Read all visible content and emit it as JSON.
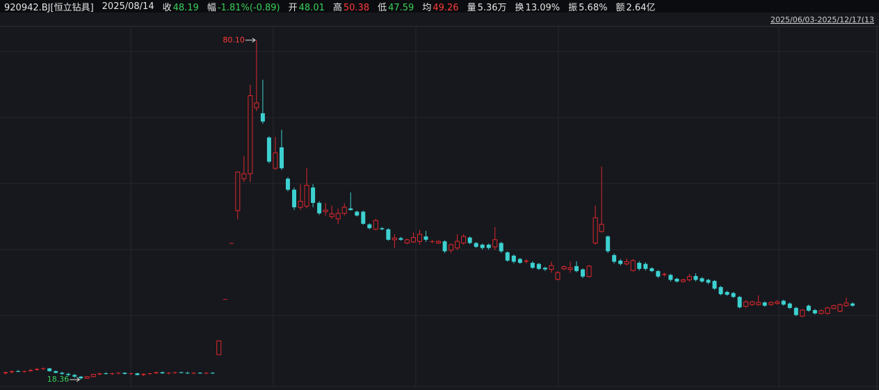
{
  "header": {
    "code": "920942.BJ[恒立钻具]",
    "date": "2025/08/14",
    "fields": [
      {
        "label": "收",
        "value": "48.19",
        "color": "#3ad15b"
      },
      {
        "label": "幅",
        "value": "-1.81%(-0.89)",
        "color": "#3ad15b"
      },
      {
        "label": "开",
        "value": "48.01",
        "color": "#3ad15b"
      },
      {
        "label": "高",
        "value": "50.38",
        "color": "#ff3b3b"
      },
      {
        "label": "低",
        "value": "47.59",
        "color": "#3ad15b"
      },
      {
        "label": "均",
        "value": "49.26",
        "color": "#ff3b3b"
      },
      {
        "label": "量",
        "value": "5.36万",
        "color": "#e6e6e6"
      },
      {
        "label": "换",
        "value": "13.09%",
        "color": "#e6e6e6"
      },
      {
        "label": "振",
        "value": "5.68%",
        "color": "#e6e6e6"
      },
      {
        "label": "额",
        "value": "2.64亿",
        "color": "#e6e6e6"
      }
    ]
  },
  "chart_data": {
    "type": "candlestick",
    "date_range": "2025/06/03-2025/12/17(13",
    "up_color": "#e0282e",
    "down_color": "#3dd0d0",
    "grid": true,
    "ylim": [
      17.1,
      82.6
    ],
    "yticks": [
      30,
      42,
      54,
      66,
      78
    ],
    "max_label": "80.10",
    "min_label": "18.36",
    "open": [
      19.5,
      19.7,
      19.9,
      19.8,
      19.9,
      20.1,
      20.3,
      20.4,
      19.9,
      19.6,
      19.4,
      19.2,
      18.9,
      18.6,
      18.9,
      19.3,
      19.5,
      19.4,
      19.5,
      19.6,
      19.4,
      19.5,
      19.2,
      19.4,
      19.5,
      19.7,
      19.5,
      19.6,
      19.7,
      19.6,
      19.5,
      19.6,
      19.5,
      19.6,
      22.9,
      33.0,
      43.2,
      49.1,
      54.9,
      55.8,
      67.8,
      66.8,
      62.4,
      56.8,
      60.6,
      54.9,
      52.9,
      49.7,
      49.9,
      53.3,
      50.5,
      48.9,
      48.0,
      47.6,
      48.6,
      49.5,
      48.9,
      48.9,
      46.6,
      45.7,
      45.9,
      45.7,
      43.8,
      44.1,
      43.2,
      43.4,
      43.5,
      44.4,
      43.4,
      43.2,
      43.5,
      41.9,
      42.3,
      43.2,
      44.2,
      43.2,
      42.9,
      42.9,
      42.5,
      43.2,
      41.5,
      40.9,
      40.3,
      39.8,
      39.6,
      39.4,
      38.7,
      38.4,
      36.6,
      38.5,
      38.4,
      39.0,
      38.4,
      37.1,
      43.2,
      45.3,
      44.4,
      41.0,
      40.0,
      39.4,
      38.2,
      39.6,
      39.4,
      38.6,
      38.1,
      37.4,
      37.4,
      36.7,
      36.2,
      36.5,
      37.2,
      36.8,
      36.5,
      36.3,
      35.2,
      34.3,
      34.1,
      33.4,
      31.7,
      32.0,
      32.0,
      32.4,
      32.0,
      32.2,
      32.7,
      32.2,
      31.4,
      29.9,
      31.8,
      31.0,
      30.4,
      30.4,
      31.3,
      30.8,
      31.8,
      32.2
    ],
    "high": [
      19.8,
      20.0,
      20.1,
      20.0,
      20.3,
      20.5,
      20.6,
      20.5,
      20.0,
      19.8,
      19.6,
      19.4,
      19.0,
      19.0,
      19.4,
      19.6,
      19.7,
      19.6,
      19.7,
      19.7,
      19.6,
      19.6,
      19.5,
      19.6,
      19.8,
      19.8,
      19.7,
      19.8,
      19.8,
      19.8,
      19.7,
      19.7,
      19.7,
      19.7,
      25.5,
      33.0,
      43.2,
      56.2,
      59.0,
      72.0,
      80.1,
      72.9,
      62.6,
      62.5,
      63.8,
      55.2,
      53.3,
      53.9,
      56.8,
      53.9,
      50.8,
      50.5,
      50.0,
      49.5,
      50.4,
      52.4,
      49.1,
      49.1,
      46.8,
      47.6,
      46.1,
      45.9,
      44.8,
      44.3,
      44.0,
      45.1,
      45.6,
      45.4,
      43.8,
      43.7,
      43.7,
      43.1,
      44.8,
      44.8,
      44.4,
      43.4,
      43.1,
      43.1,
      46.1,
      43.4,
      41.7,
      41.1,
      40.5,
      40.3,
      39.9,
      39.6,
      38.9,
      39.8,
      38.1,
      39.1,
      39.8,
      39.9,
      38.6,
      39.2,
      50.0,
      57.1,
      44.6,
      41.3,
      40.3,
      40.4,
      40.3,
      39.9,
      39.7,
      38.8,
      38.3,
      37.8,
      37.6,
      36.9,
      36.7,
      37.6,
      37.7,
      37.0,
      36.7,
      36.5,
      35.4,
      34.5,
      34.3,
      33.6,
      32.8,
      32.7,
      33.7,
      32.6,
      32.6,
      32.8,
      32.9,
      32.4,
      31.6,
      31.2,
      32.0,
      31.2,
      31.1,
      31.6,
      32.0,
      32.2,
      33.3,
      32.4
    ],
    "low": [
      19.3,
      19.5,
      19.7,
      19.6,
      19.8,
      20.0,
      20.1,
      19.8,
      19.5,
      19.2,
      19.0,
      18.7,
      18.36,
      18.5,
      18.8,
      19.2,
      19.3,
      19.2,
      19.3,
      19.3,
      19.2,
      19.1,
      19.0,
      19.2,
      19.4,
      19.4,
      19.3,
      19.4,
      19.5,
      19.4,
      19.3,
      19.4,
      19.3,
      19.4,
      22.9,
      33.0,
      43.2,
      47.5,
      54.3,
      54.3,
      67.2,
      64.9,
      57.7,
      56.5,
      56.5,
      52.6,
      49.2,
      49.2,
      49.5,
      49.7,
      48.3,
      48.2,
      47.6,
      46.7,
      48.2,
      49.1,
      48.0,
      46.5,
      45.7,
      45.5,
      45.5,
      43.6,
      42.3,
      43.6,
      43.0,
      43.2,
      42.9,
      43.4,
      43.2,
      43.0,
      41.4,
      41.4,
      41.9,
      42.9,
      43.0,
      42.3,
      42.0,
      42.0,
      41.9,
      41.4,
      39.8,
      39.5,
      39.4,
      39.5,
      38.5,
      38.3,
      38.1,
      37.8,
      36.4,
      38.3,
      37.8,
      37.9,
      36.8,
      36.9,
      42.9,
      45.1,
      41.4,
      39.5,
      39.1,
      39.1,
      38.0,
      38.2,
      38.2,
      37.9,
      36.8,
      37.1,
      36.2,
      36.0,
      36.0,
      36.2,
      36.2,
      36.0,
      35.7,
      34.7,
      33.7,
      33.6,
      33.2,
      31.3,
      31.4,
      31.8,
      31.8,
      31.6,
      31.8,
      32.0,
      31.8,
      31.2,
      29.9,
      29.7,
      30.7,
      30.2,
      30.2,
      30.2,
      31.1,
      30.6,
      31.6,
      31.6
    ],
    "close": [
      19.7,
      19.9,
      19.8,
      19.9,
      20.1,
      20.3,
      20.4,
      19.9,
      19.6,
      19.4,
      19.2,
      18.9,
      18.6,
      18.9,
      19.3,
      19.5,
      19.4,
      19.5,
      19.6,
      19.4,
      19.5,
      19.2,
      19.4,
      19.5,
      19.7,
      19.5,
      19.6,
      19.7,
      19.6,
      19.5,
      19.6,
      19.5,
      19.6,
      19.5,
      25.4,
      33.0,
      43.2,
      56.1,
      55.8,
      70.0,
      68.7,
      65.3,
      58.0,
      59.6,
      56.8,
      52.9,
      49.7,
      50.8,
      53.7,
      50.5,
      48.6,
      49.2,
      48.5,
      48.6,
      49.7,
      49.2,
      48.2,
      46.7,
      45.9,
      47.3,
      45.7,
      43.8,
      44.1,
      43.8,
      43.8,
      44.2,
      44.8,
      43.8,
      43.5,
      43.5,
      41.7,
      42.9,
      43.5,
      44.4,
      43.2,
      42.5,
      42.3,
      42.3,
      43.8,
      41.7,
      40.0,
      39.8,
      39.6,
      40.0,
      38.7,
      38.5,
      38.4,
      39.1,
      37.8,
      38.9,
      38.7,
      38.1,
      37.1,
      39.0,
      47.8,
      46.6,
      41.7,
      39.8,
      39.4,
      39.8,
      40.0,
      38.5,
      38.5,
      38.1,
      37.1,
      37.6,
      36.5,
      36.2,
      36.5,
      37.1,
      36.5,
      36.2,
      36.0,
      34.9,
      33.9,
      33.8,
      33.4,
      31.5,
      32.5,
      32.5,
      32.4,
      31.8,
      32.4,
      32.5,
      32.0,
      31.4,
      30.1,
      31.0,
      30.9,
      30.4,
      30.9,
      31.4,
      31.8,
      32.0,
      32.3,
      31.8
    ]
  }
}
